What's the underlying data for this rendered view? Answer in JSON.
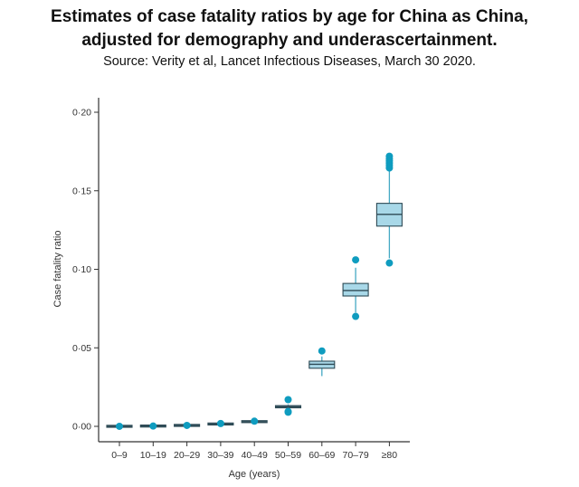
{
  "chart_data": {
    "type": "box",
    "title_line1": "Estimates of case fatality ratios by age for China as China,",
    "title_line2": "adjusted for demography and underascertainment.",
    "subtitle": "Source: Verity et al, Lancet Infectious Diseases, March 30 2020.",
    "xlabel": "Age (years)",
    "ylabel": "Case fatality ratio",
    "ylim": [
      -0.01,
      0.21
    ],
    "yticks": [
      0.0,
      0.05,
      0.1,
      0.15,
      0.2
    ],
    "ytick_labels": [
      "0·00",
      "0·05",
      "0·10",
      "0·15",
      "0·20"
    ],
    "categories": [
      "0–9",
      "10–19",
      "20–29",
      "30–39",
      "40–49",
      "50–59",
      "60–69",
      "70–79",
      "≥80"
    ],
    "boxes": [
      {
        "median": 3e-05,
        "q1": 2e-05,
        "q3": 4e-05,
        "whisker_low": 1e-05,
        "whisker_high": 6e-05,
        "outliers": [
          3e-05
        ]
      },
      {
        "median": 0.0002,
        "q1": 0.00015,
        "q3": 0.00025,
        "whisker_low": 0.0001,
        "whisker_high": 0.0003,
        "outliers": [
          0.0002
        ]
      },
      {
        "median": 0.0006,
        "q1": 0.0005,
        "q3": 0.0007,
        "whisker_low": 0.0004,
        "whisker_high": 0.0008,
        "outliers": [
          0.0006
        ]
      },
      {
        "median": 0.0015,
        "q1": 0.0013,
        "q3": 0.0017,
        "whisker_low": 0.0011,
        "whisker_high": 0.0019,
        "outliers": [
          0.0018
        ]
      },
      {
        "median": 0.003,
        "q1": 0.0028,
        "q3": 0.0032,
        "whisker_low": 0.0026,
        "whisker_high": 0.0034,
        "outliers": [
          0.0033
        ]
      },
      {
        "median": 0.0125,
        "q1": 0.0118,
        "q3": 0.0132,
        "whisker_low": 0.011,
        "whisker_high": 0.014,
        "outliers": [
          0.017,
          0.0095,
          0.009
        ]
      },
      {
        "median": 0.0395,
        "q1": 0.037,
        "q3": 0.0415,
        "whisker_low": 0.032,
        "whisker_high": 0.0445,
        "outliers": [
          0.048
        ]
      },
      {
        "median": 0.0865,
        "q1": 0.083,
        "q3": 0.091,
        "whisker_low": 0.0725,
        "whisker_high": 0.101,
        "outliers": [
          0.106,
          0.07
        ]
      },
      {
        "median": 0.135,
        "q1": 0.1275,
        "q3": 0.142,
        "whisker_low": 0.107,
        "whisker_high": 0.164,
        "outliers": [
          0.172,
          0.1705,
          0.169,
          0.1675,
          0.166,
          0.1645,
          0.104
        ]
      }
    ],
    "colors": {
      "box_fill": "#a8d8e8",
      "box_stroke": "#2e4a55",
      "whisker": "#45a9c4",
      "outlier": "#0f9cbf",
      "axis": "#333333"
    },
    "grid": false,
    "legend": "none"
  }
}
